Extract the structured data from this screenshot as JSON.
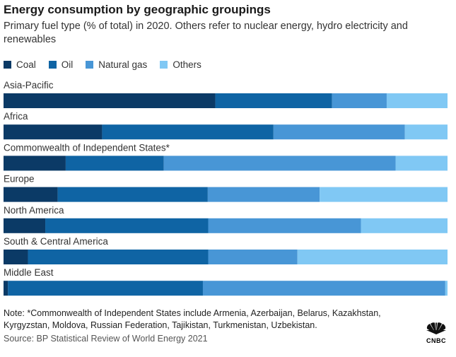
{
  "chart_data": {
    "type": "bar",
    "orientation": "horizontal",
    "stacked": true,
    "title": "Energy consumption by geographic groupings",
    "subtitle": "Primary fuel type (% of total) in 2020. Others refer to nuclear energy, hydro electricity and renewables",
    "xlim": [
      0,
      100
    ],
    "legend_position": "top-left",
    "categories": [
      "Asia-Pacific",
      "Africa",
      "Commonwealth of Independent States*",
      "Europe",
      "North America",
      "South & Central America",
      "Middle East"
    ],
    "series": [
      {
        "name": "Coal",
        "color": "#0b3a66",
        "values": [
          47.7,
          22.2,
          14.0,
          12.2,
          9.4,
          5.5,
          1.0
        ]
      },
      {
        "name": "Oil",
        "color": "#0f64a4",
        "values": [
          26.3,
          38.6,
          22.1,
          33.8,
          36.7,
          40.6,
          43.9
        ]
      },
      {
        "name": "Natural gas",
        "color": "#4896d6",
        "values": [
          12.3,
          29.6,
          52.2,
          25.2,
          34.4,
          20.1,
          54.6
        ]
      },
      {
        "name": "Others",
        "color": "#80c8f4",
        "values": [
          13.7,
          9.6,
          11.7,
          28.8,
          19.5,
          33.8,
          0.5
        ]
      }
    ]
  },
  "notes": {
    "note": "Note: *Commonwealth of Independent States include Armenia, Azerbaijan, Belarus, Kazakhstan, Kyrgyzstan, Moldova, Russian Federation, Tajikistan, Turkmenistan, Uzbekistan.",
    "source": "Source: BP Statistical Review of World Energy 2021"
  },
  "logo": {
    "text": "CNBC"
  }
}
